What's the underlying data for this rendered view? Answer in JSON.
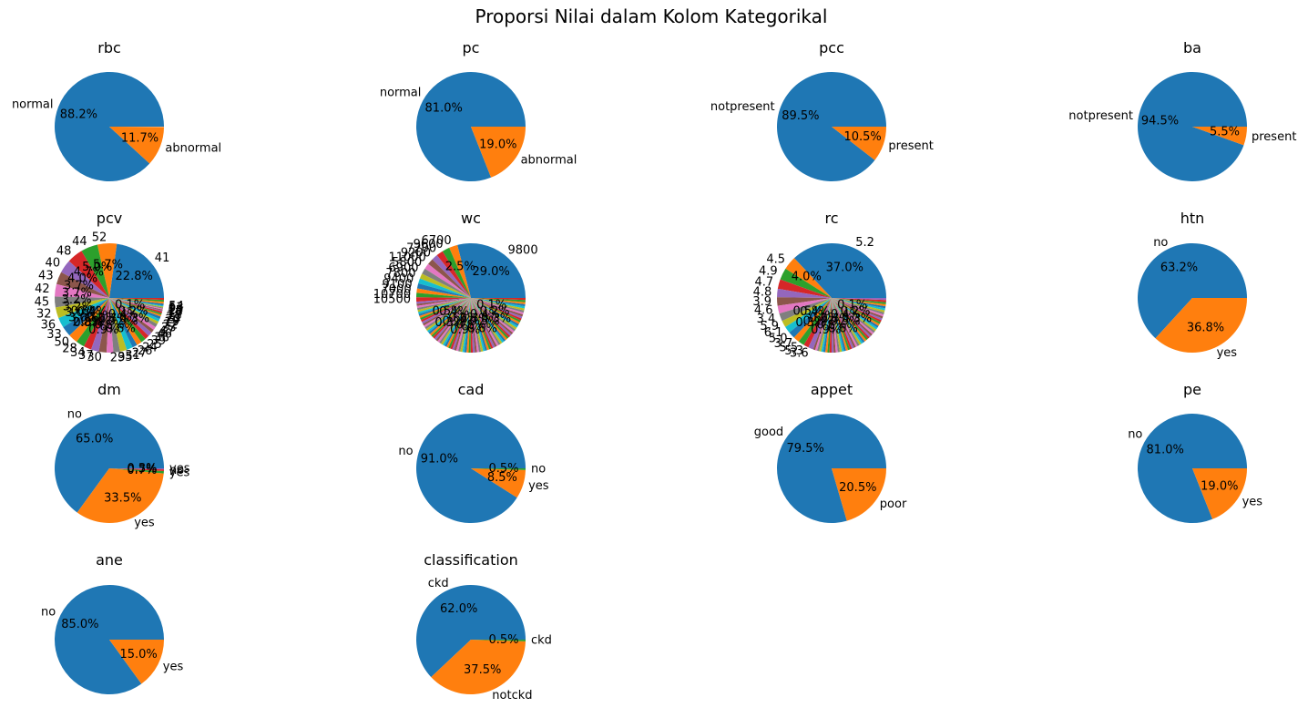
{
  "figure": {
    "title": "Proporsi Nilai dalam Kolom Kategorikal"
  },
  "chart_data": [
    {
      "type": "pie",
      "title": "rbc",
      "labels": [
        "normal",
        "abnormal"
      ],
      "values": [
        88.2,
        11.7
      ],
      "pct_labels": [
        "88.2%",
        "11.7%"
      ],
      "colors": [
        "#1f77b4",
        "#ff7f0e"
      ]
    },
    {
      "type": "pie",
      "title": "pc",
      "labels": [
        "normal",
        "abnormal"
      ],
      "values": [
        81.0,
        19.0
      ],
      "pct_labels": [
        "81.0%",
        "19.0%"
      ],
      "colors": [
        "#1f77b4",
        "#ff7f0e"
      ]
    },
    {
      "type": "pie",
      "title": "pcc",
      "labels": [
        "notpresent",
        "present"
      ],
      "values": [
        89.5,
        10.5
      ],
      "pct_labels": [
        "89.5%",
        "10.5%"
      ],
      "colors": [
        "#1f77b4",
        "#ff7f0e"
      ]
    },
    {
      "type": "pie",
      "title": "ba",
      "labels": [
        "notpresent",
        "present"
      ],
      "values": [
        94.5,
        5.5
      ],
      "pct_labels": [
        "94.5%",
        "5.5%"
      ],
      "colors": [
        "#1f77b4",
        "#ff7f0e"
      ]
    },
    {
      "type": "pie",
      "title": "pcv",
      "crowded": true,
      "labels": [
        "41",
        "52",
        "44",
        "48",
        "40",
        "43",
        "42",
        "45",
        "32",
        "36",
        "33",
        "50",
        "28",
        "34",
        "37",
        "30",
        "29",
        "35",
        "31",
        "27",
        "26",
        "24",
        "25",
        "39",
        "38",
        "46",
        "47",
        "23",
        "22",
        "19",
        "20",
        "21",
        "18",
        "17",
        "16",
        "15",
        "14",
        "9",
        "53",
        "54"
      ],
      "values": [
        22.8,
        5.7,
        5.0,
        4.7,
        4.0,
        3.7,
        3.7,
        3.2,
        3.2,
        3.0,
        3.0,
        2.8,
        2.5,
        2.3,
        2.3,
        2.3,
        2.0,
        2.0,
        2.0,
        1.8,
        1.5,
        1.5,
        1.5,
        1.3,
        1.3,
        1.0,
        1.0,
        1.0,
        0.8,
        0.8,
        0.8,
        0.5,
        0.5,
        0.5,
        0.3,
        0.3,
        0.3,
        0.3,
        0.3,
        0.3
      ],
      "pct_labels": [
        "22.8%",
        "5.7%",
        "5.0%",
        "4.7%",
        "4.0%",
        "3.7%",
        "3.7%",
        "3.2%",
        "3.2%",
        "3.0%",
        "3.0%",
        "2.8%"
      ]
    },
    {
      "type": "pie",
      "title": "wc",
      "crowded": true,
      "labels": [
        "9800",
        "6700",
        "9600",
        "7200",
        "9200",
        "11000",
        "5800",
        "6900",
        "7800",
        "9400",
        "9100",
        "7000",
        "10700",
        "10500"
      ],
      "values": [
        29.0,
        2.5,
        2.2,
        2.0,
        1.8,
        1.8,
        1.7,
        1.7,
        1.5,
        1.5,
        1.5,
        1.3,
        1.3,
        1.3
      ],
      "pct_labels": [
        "29.0%",
        "2.5%"
      ]
    },
    {
      "type": "pie",
      "title": "rc",
      "crowded": true,
      "labels": [
        "5.2",
        "4.5",
        "4.9",
        "4.7",
        "4.8",
        "3.9",
        "4.6",
        "3.4",
        "5.9",
        "6.1",
        "5.0",
        "3.7",
        "5.5",
        "5.3",
        "3.6"
      ],
      "values": [
        37.0,
        4.0,
        3.5,
        2.8,
        2.5,
        2.5,
        2.3,
        2.3,
        2.0,
        2.0,
        2.0,
        1.8,
        1.8,
        1.5,
        1.5
      ],
      "pct_labels": [
        "37.0%",
        "4.0%"
      ]
    },
    {
      "type": "pie",
      "title": "htn",
      "labels": [
        "no",
        "yes"
      ],
      "values": [
        63.2,
        36.8
      ],
      "pct_labels": [
        "63.2%",
        "36.8%"
      ],
      "colors": [
        "#1f77b4",
        "#ff7f0e"
      ]
    },
    {
      "type": "pie",
      "title": "dm",
      "labels": [
        "no",
        "yes",
        "\tyes",
        "\tno",
        " yes"
      ],
      "values": [
        65.0,
        33.5,
        0.7,
        0.5,
        0.3
      ],
      "pct_labels": [
        "65.0%",
        "33.5%",
        "0.7%",
        "0.5%",
        "0.3%"
      ],
      "colors": [
        "#1f77b4",
        "#ff7f0e",
        "#2ca02c",
        "#d62728",
        "#9467bd"
      ]
    },
    {
      "type": "pie",
      "title": "cad",
      "labels": [
        "no",
        "yes",
        "\tno"
      ],
      "values": [
        91.0,
        8.5,
        0.5
      ],
      "pct_labels": [
        "91.0%",
        "8.5%",
        "0.5%"
      ],
      "colors": [
        "#1f77b4",
        "#ff7f0e",
        "#2ca02c"
      ]
    },
    {
      "type": "pie",
      "title": "appet",
      "labels": [
        "good",
        "poor"
      ],
      "values": [
        79.5,
        20.5
      ],
      "pct_labels": [
        "79.5%",
        "20.5%"
      ],
      "colors": [
        "#1f77b4",
        "#ff7f0e"
      ]
    },
    {
      "type": "pie",
      "title": "pe",
      "labels": [
        "no",
        "yes"
      ],
      "values": [
        81.0,
        19.0
      ],
      "pct_labels": [
        "81.0%",
        "19.0%"
      ],
      "colors": [
        "#1f77b4",
        "#ff7f0e"
      ]
    },
    {
      "type": "pie",
      "title": "ane",
      "labels": [
        "no",
        "yes"
      ],
      "values": [
        85.0,
        15.0
      ],
      "pct_labels": [
        "85.0%",
        "15.0%"
      ],
      "colors": [
        "#1f77b4",
        "#ff7f0e"
      ]
    },
    {
      "type": "pie",
      "title": "classification",
      "labels": [
        "ckd",
        "notckd",
        "ckd\t"
      ],
      "values": [
        62.0,
        37.5,
        0.5
      ],
      "pct_labels": [
        "62.0%",
        "37.5%",
        "0.5%"
      ],
      "colors": [
        "#1f77b4",
        "#ff7f0e",
        "#2ca02c"
      ]
    }
  ]
}
